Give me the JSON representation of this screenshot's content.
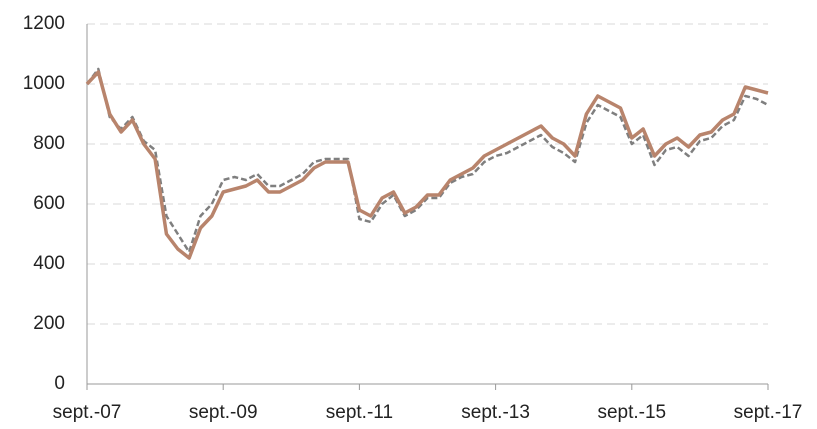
{
  "chart_data": {
    "type": "line",
    "categories": [
      "sept.-07",
      null,
      null,
      null,
      null,
      null,
      null,
      null,
      null,
      null,
      null,
      null,
      "sept.-09",
      null,
      null,
      null,
      null,
      null,
      null,
      null,
      null,
      null,
      null,
      null,
      "sept.-11",
      null,
      null,
      null,
      null,
      null,
      null,
      null,
      null,
      null,
      null,
      null,
      "sept.-13",
      null,
      null,
      null,
      null,
      null,
      null,
      null,
      null,
      null,
      null,
      null,
      "sept.-15",
      null,
      null,
      null,
      null,
      null,
      null,
      null,
      null,
      null,
      null,
      null,
      "sept.-17"
    ],
    "series": [
      {
        "color": "#7f7f7f",
        "dashed": true,
        "values": [
          1000,
          1050,
          890,
          850,
          890,
          810,
          780,
          560,
          500,
          440,
          560,
          600,
          680,
          690,
          680,
          700,
          660,
          660,
          680,
          700,
          740,
          750,
          750,
          750,
          550,
          540,
          600,
          630,
          560,
          580,
          620,
          620,
          670,
          690,
          700,
          740,
          760,
          770,
          790,
          810,
          830,
          790,
          770,
          740,
          870,
          930,
          910,
          890,
          800,
          830,
          730,
          780,
          790,
          760,
          810,
          820,
          860,
          880,
          960,
          950,
          930
        ]
      },
      {
        "color": "#b8846c",
        "dashed": false,
        "values": [
          1000,
          1040,
          900,
          840,
          880,
          800,
          750,
          500,
          450,
          420,
          520,
          560,
          640,
          650,
          660,
          680,
          640,
          640,
          660,
          680,
          720,
          740,
          740,
          740,
          580,
          560,
          620,
          640,
          570,
          590,
          630,
          630,
          680,
          700,
          720,
          760,
          780,
          800,
          820,
          840,
          860,
          820,
          800,
          760,
          900,
          960,
          940,
          920,
          820,
          850,
          760,
          800,
          820,
          790,
          830,
          840,
          880,
          900,
          990,
          980,
          970
        ]
      }
    ],
    "ylim": [
      0,
      1200
    ],
    "yticks": [
      0,
      200,
      400,
      600,
      800,
      1000,
      1200
    ],
    "grid": true
  }
}
